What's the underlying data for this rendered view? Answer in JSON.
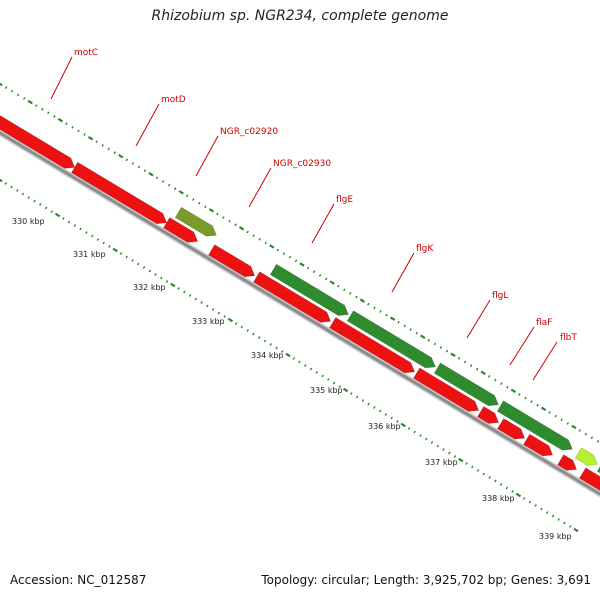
{
  "title": "Rhizobium sp. NGR234, complete genome",
  "footer": {
    "accession": "Accession: NC_012587",
    "summary": "Topology: circular; Length: 3,925,702 bp; Genes: 3,691"
  },
  "kbp_labels": [
    "330 kbp",
    "331 kbp",
    "332 kbp",
    "333 kbp",
    "334 kbp",
    "335 kbp",
    "336 kbp",
    "337 kbp",
    "338 kbp",
    "339 kbp"
  ],
  "gene_labels": [
    "motC",
    "motD",
    "NGR_c02920",
    "NGR_c02930",
    "flgE",
    "flgK",
    "flgL",
    "flaF",
    "flbT"
  ],
  "colors": {
    "forward_gene": "#2e8b2e",
    "reverse_gene": "#ee1111",
    "pseudo_gene": "#7a9a2a",
    "highlight_gene": "#b8f030",
    "ticks": "#2a8a2a",
    "backbone": "#999999",
    "label": "#cc0000"
  }
}
